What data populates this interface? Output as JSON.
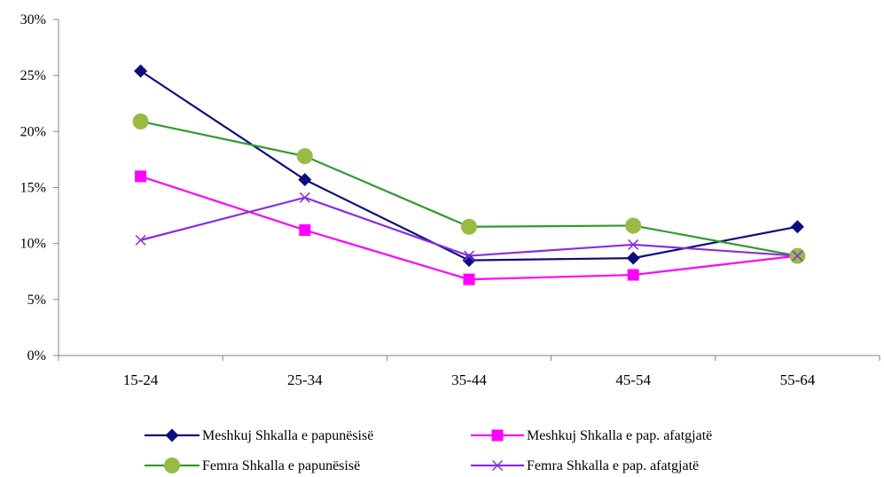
{
  "chart_data": {
    "type": "line",
    "title": "",
    "xlabel": "",
    "ylabel": "",
    "categories": [
      "15-24",
      "25-34",
      "35-44",
      "45-54",
      "55-64"
    ],
    "ylim": [
      0,
      30
    ],
    "yticks": [
      0,
      5,
      10,
      15,
      20,
      25,
      30
    ],
    "ytick_labels": [
      "0%",
      "5%",
      "10%",
      "15%",
      "20%",
      "25%",
      "30%"
    ],
    "grid": false,
    "legend_position": "bottom",
    "series": [
      {
        "name": "Meshkuj Shkalla e papunësisë",
        "values": [
          25.4,
          15.7,
          8.5,
          8.7,
          11.5
        ],
        "color": "#0d0d80",
        "marker": "diamond"
      },
      {
        "name": "Meshkuj Shkalla e pap. afatgjatë",
        "values": [
          16.0,
          11.2,
          6.8,
          7.2,
          8.9
        ],
        "color": "#ff00ff",
        "marker": "square"
      },
      {
        "name": "Femra Shkalla e papunësisë",
        "values": [
          20.9,
          17.8,
          11.5,
          11.6,
          8.9
        ],
        "color": "#339933",
        "marker": "circle",
        "marker_fill": "#99bb44"
      },
      {
        "name": "Femra Shkalla e pap. afatgjatë",
        "values": [
          10.3,
          14.1,
          8.9,
          9.9,
          8.9
        ],
        "color": "#8a2be2",
        "marker": "x"
      }
    ]
  }
}
